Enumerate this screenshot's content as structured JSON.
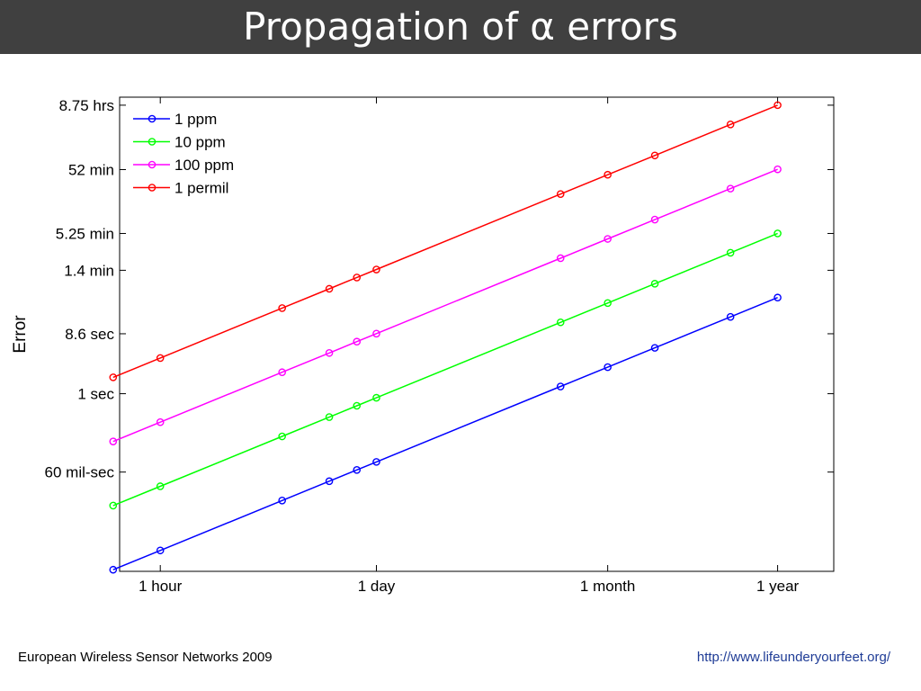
{
  "slide": {
    "title": "Propagation of α errors",
    "footer_left": "European Wireless Sensor Networks 2009",
    "footer_right": "http://www.lifeunderyourfeet.org/"
  },
  "chart_data": {
    "type": "line",
    "title": "",
    "xlabel": "",
    "ylabel": "Error",
    "x_scale": "log",
    "y_scale": "log",
    "xlim_hours": [
      0.55,
      20000
    ],
    "ylim_seconds": [
      0.0017,
      42000
    ],
    "xticks": [
      {
        "label": "1 hour",
        "hours": 1
      },
      {
        "label": "1 day",
        "hours": 24
      },
      {
        "label": "1 month",
        "hours": 720
      },
      {
        "label": "1 year",
        "hours": 8760
      }
    ],
    "yticks": [
      {
        "label": "60 mil-sec",
        "seconds": 0.06
      },
      {
        "label": "1 sec",
        "seconds": 1
      },
      {
        "label": "8.6 sec",
        "seconds": 8.6
      },
      {
        "label": "1.4 min",
        "seconds": 84
      },
      {
        "label": "5.25 min",
        "seconds": 315
      },
      {
        "label": "52 min",
        "seconds": 3120
      },
      {
        "label": "8.75 hrs",
        "seconds": 31500
      }
    ],
    "x_hours": [
      0.5,
      1,
      6,
      12,
      18,
      24,
      360,
      720,
      1440,
      4380,
      8760
    ],
    "legend_position": "top-left",
    "grid": false,
    "series": [
      {
        "name": "1 ppm",
        "color": "#0000ff",
        "rate": 1e-06
      },
      {
        "name": "10 ppm",
        "color": "#00ff00",
        "rate": 1e-05
      },
      {
        "name": "100 ppm",
        "color": "#ff00ff",
        "rate": 0.0001
      },
      {
        "name": "1 permil",
        "color": "#ff0000",
        "rate": 0.001
      }
    ]
  }
}
